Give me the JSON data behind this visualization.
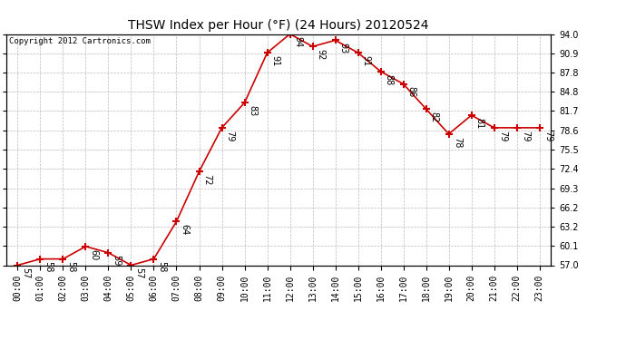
{
  "title": "THSW Index per Hour (°F) (24 Hours) 20120524",
  "copyright": "Copyright 2012 Cartronics.com",
  "hours": [
    "00:00",
    "01:00",
    "02:00",
    "03:00",
    "04:00",
    "05:00",
    "06:00",
    "07:00",
    "08:00",
    "09:00",
    "10:00",
    "11:00",
    "12:00",
    "13:00",
    "14:00",
    "15:00",
    "16:00",
    "17:00",
    "18:00",
    "19:00",
    "20:00",
    "21:00",
    "22:00",
    "23:00"
  ],
  "values": [
    57,
    58,
    58,
    60,
    59,
    57,
    58,
    64,
    72,
    79,
    83,
    91,
    94,
    92,
    93,
    91,
    88,
    86,
    82,
    78,
    81,
    79,
    79,
    79
  ],
  "ylim_min": 57.0,
  "ylim_max": 94.0,
  "yticks": [
    57.0,
    60.1,
    63.2,
    66.2,
    69.3,
    72.4,
    75.5,
    78.6,
    81.7,
    84.8,
    87.8,
    90.9,
    94.0
  ],
  "line_color": "#cc0000",
  "marker": "+",
  "marker_color": "#cc0000",
  "bg_color": "#ffffff",
  "grid_color": "#bbbbbb",
  "title_fontsize": 10,
  "label_fontsize": 7,
  "annotation_fontsize": 7,
  "copyright_fontsize": 6.5
}
